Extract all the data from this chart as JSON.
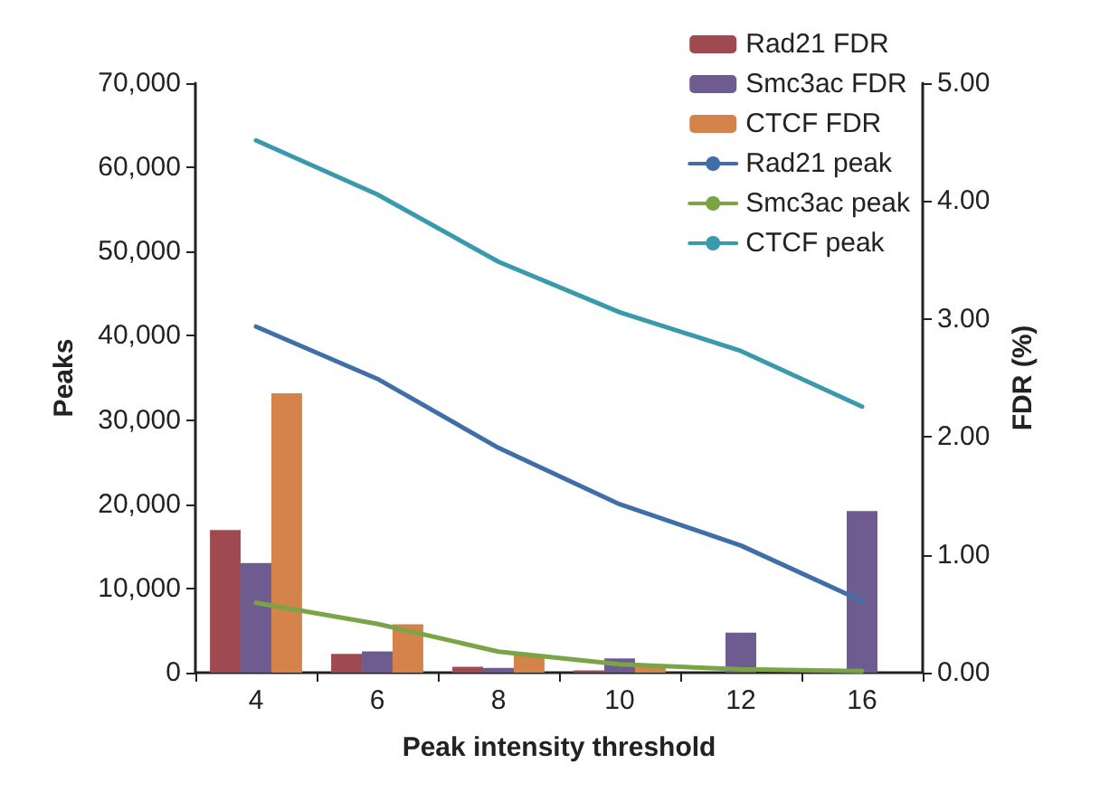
{
  "chart_data": {
    "type": "bar",
    "xlabel": "Peak intensity threshold",
    "ylabel": "Peaks",
    "y2label": "FDR (%)",
    "categories": [
      "4",
      "6",
      "8",
      "10",
      "12",
      "16"
    ],
    "series": [
      {
        "name": "Rad21 FDR",
        "color": "#9e4a50",
        "axis": "y2",
        "values": [
          1.21,
          0.16,
          0.05,
          0.02,
          0,
          0
        ]
      },
      {
        "name": "Smc3ac FDR",
        "color": "#6e5c90",
        "axis": "y2",
        "values": [
          0.93,
          0.18,
          0.04,
          0.12,
          0.34,
          1.37
        ]
      },
      {
        "name": "CTCF FDR",
        "color": "#d4834a",
        "axis": "y2",
        "values": [
          2.37,
          0.41,
          0.15,
          0.05,
          0,
          0
        ]
      },
      {
        "name": "Rad21 peak",
        "color": "#3f6ea8",
        "type": "line",
        "values": [
          41100,
          34900,
          26700,
          20000,
          15100,
          8500
        ]
      },
      {
        "name": "Smc3ac peak",
        "color": "#7aa446",
        "type": "line",
        "values": [
          8300,
          5800,
          2500,
          1000,
          400,
          200
        ]
      },
      {
        "name": "CTCF peak",
        "color": "#3a9aad",
        "type": "line",
        "values": [
          63200,
          56800,
          48800,
          42800,
          38200,
          31600
        ]
      }
    ],
    "ylim": [
      0,
      70000
    ],
    "yticks": [
      {
        "value": 0,
        "label": "0"
      },
      {
        "value": 10000,
        "label": "10,000"
      },
      {
        "value": 20000,
        "label": "20,000"
      },
      {
        "value": 30000,
        "label": "30,000"
      },
      {
        "value": 40000,
        "label": "40,000"
      },
      {
        "value": 50000,
        "label": "50,000"
      },
      {
        "value": 60000,
        "label": "60,000"
      },
      {
        "value": 70000,
        "label": "70,000"
      }
    ],
    "y2lim": [
      0,
      5
    ],
    "y2ticks": [
      {
        "value": 0,
        "label": "0.00"
      },
      {
        "value": 1,
        "label": "1.00"
      },
      {
        "value": 2,
        "label": "2.00"
      },
      {
        "value": 3,
        "label": "3.00"
      },
      {
        "value": 4,
        "label": "4.00"
      },
      {
        "value": 5,
        "label": "5.00"
      }
    ],
    "grid": false,
    "legend": "top right",
    "marker": "none",
    "line_style": "solid"
  }
}
